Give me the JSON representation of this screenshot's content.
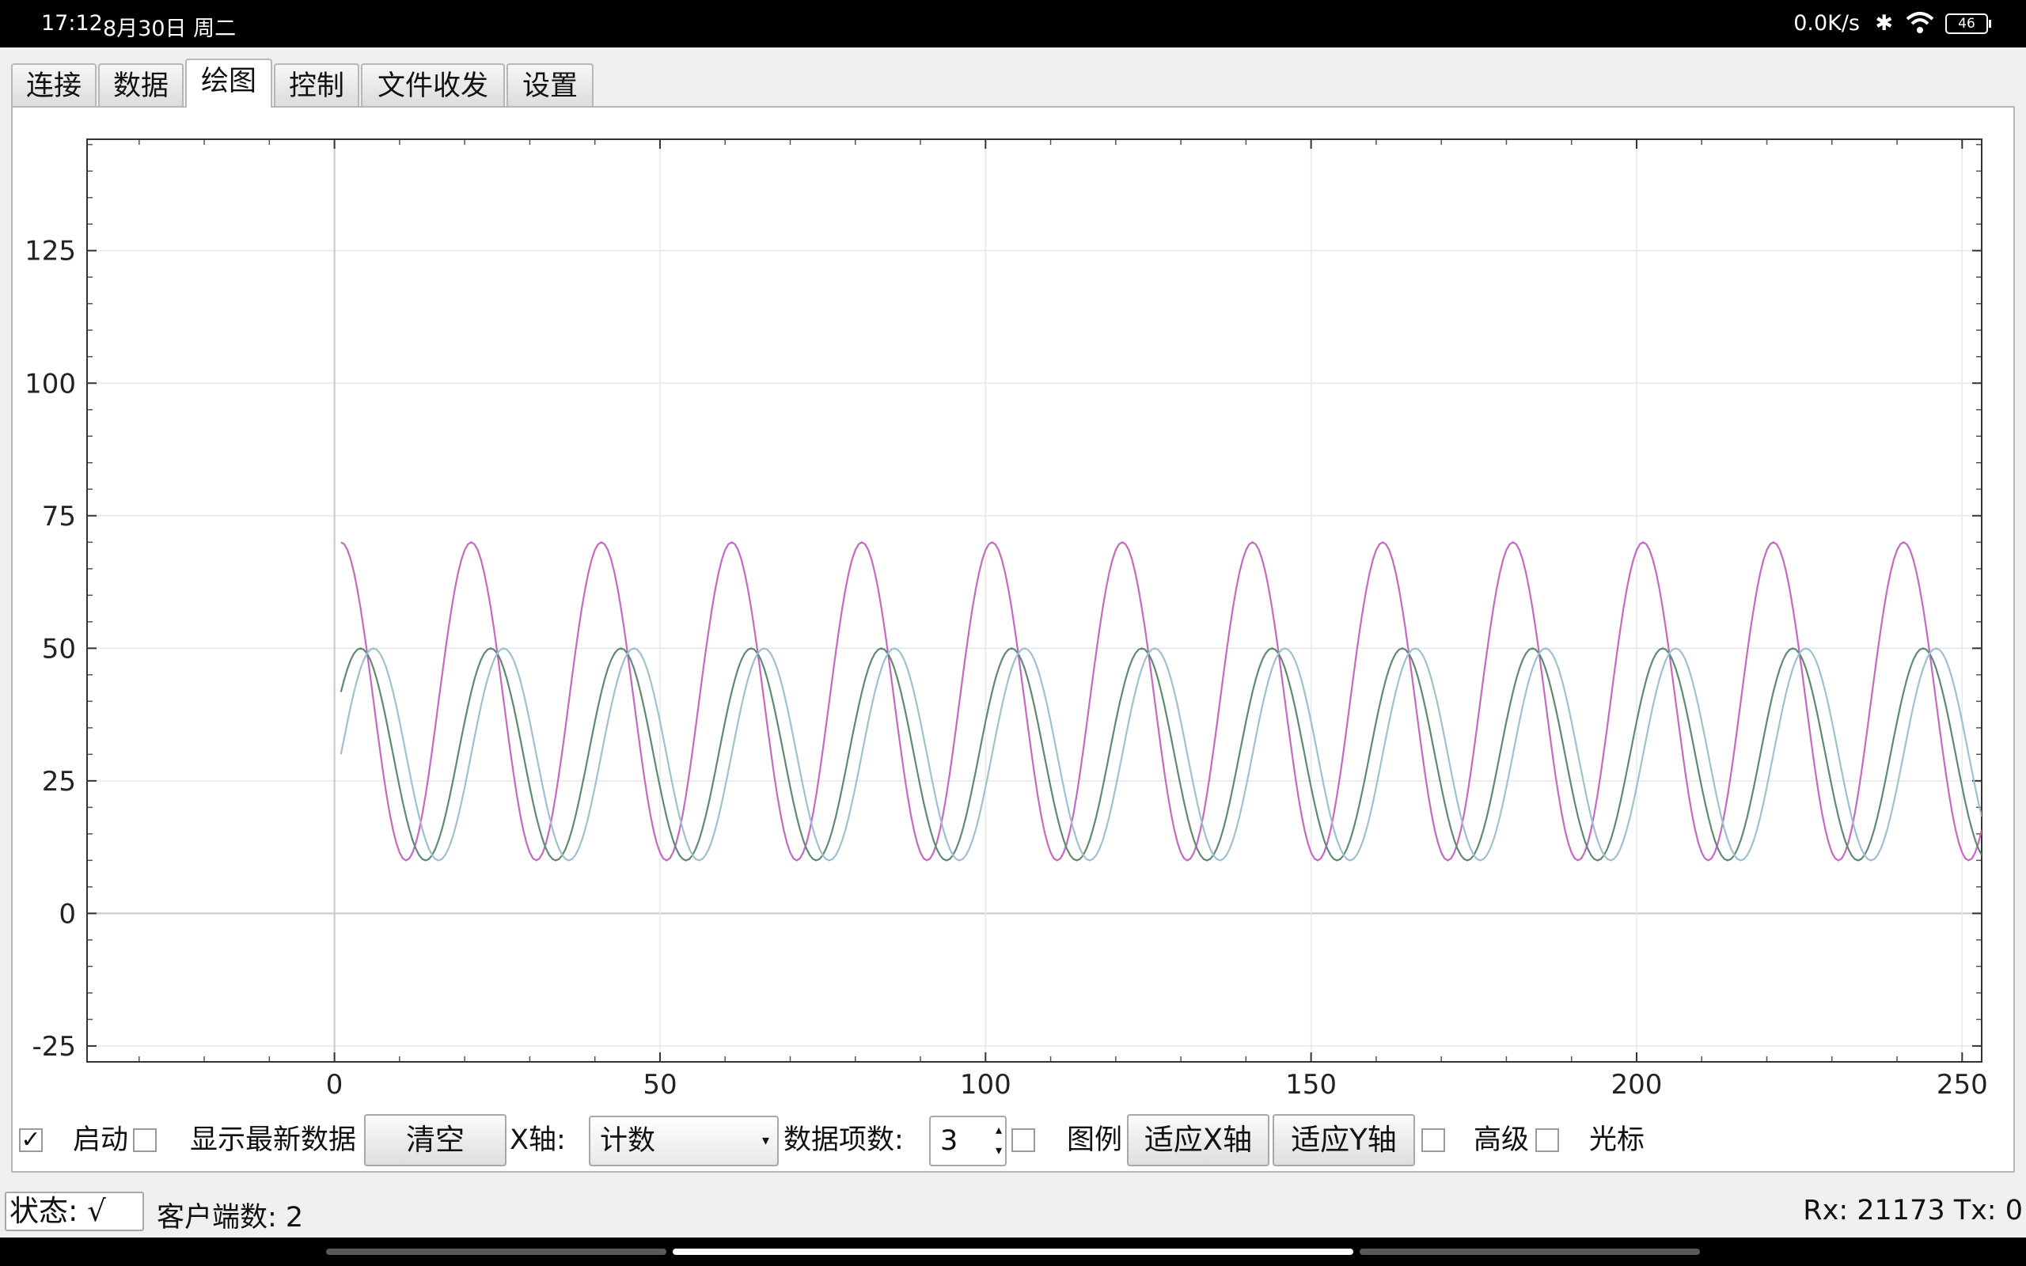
{
  "statusbar": {
    "time": "17:12",
    "date": "8月30日 周二",
    "net_speed": "0.0K/s",
    "bt_icon": "bluetooth-icon",
    "wifi_icon": "wifi-icon",
    "battery": "46"
  },
  "tabs": [
    {
      "label": "连接",
      "active": false
    },
    {
      "label": "数据",
      "active": false
    },
    {
      "label": "绘图",
      "active": true
    },
    {
      "label": "控制",
      "active": false
    },
    {
      "label": "文件收发",
      "active": false
    },
    {
      "label": "设置",
      "active": false
    }
  ],
  "chart_data": {
    "type": "line",
    "title": "",
    "xlabel": "",
    "ylabel": "",
    "xlim": [
      -38,
      253
    ],
    "ylim": [
      -28,
      146
    ],
    "x_ticks": [
      0,
      50,
      100,
      150,
      200,
      250
    ],
    "y_ticks": [
      -25,
      0,
      25,
      50,
      75,
      100,
      125
    ],
    "grid": true,
    "legend": false,
    "series": [
      {
        "color": "#c46ac0",
        "x_start": 1,
        "x_end": 253,
        "amplitude": 30,
        "offset": 40,
        "period": 20,
        "phase_deg": 90,
        "peaks_x": [
          1,
          21,
          41,
          61,
          81,
          101,
          121,
          141,
          161,
          181,
          201,
          221,
          241
        ]
      },
      {
        "color": "#5f8a72",
        "x_start": 1,
        "x_end": 253,
        "amplitude": 20,
        "offset": 30,
        "period": 20,
        "phase_deg": 36,
        "peaks_x": [
          5,
          25,
          45,
          65,
          85,
          105,
          125,
          145,
          165,
          185,
          205,
          225,
          245
        ]
      },
      {
        "color": "#9ec0d0",
        "x_start": 1,
        "x_end": 253,
        "amplitude": 20,
        "offset": 30,
        "period": 20,
        "phase_deg": 0,
        "peaks_x": [
          6,
          26,
          46,
          66,
          86,
          106,
          126,
          146,
          166,
          186,
          206,
          226,
          246
        ]
      }
    ]
  },
  "controls": {
    "start_checked": true,
    "start_label": "启动",
    "show_latest_label": "显示最新数据",
    "clear_label": "清空",
    "xaxis_label": "X轴:",
    "xaxis_value": "计数",
    "item_count_label": "数据项数:",
    "item_count_value": "3",
    "legend_label": "图例",
    "fit_x_label": "适应X轴",
    "fit_y_label": "适应Y轴",
    "advanced_label": "高级",
    "cursor_label": "光标"
  },
  "footer": {
    "state": "状态: √",
    "clients": "客户端数: 2",
    "rxtx": "Rx: 21173  Tx: 0"
  }
}
